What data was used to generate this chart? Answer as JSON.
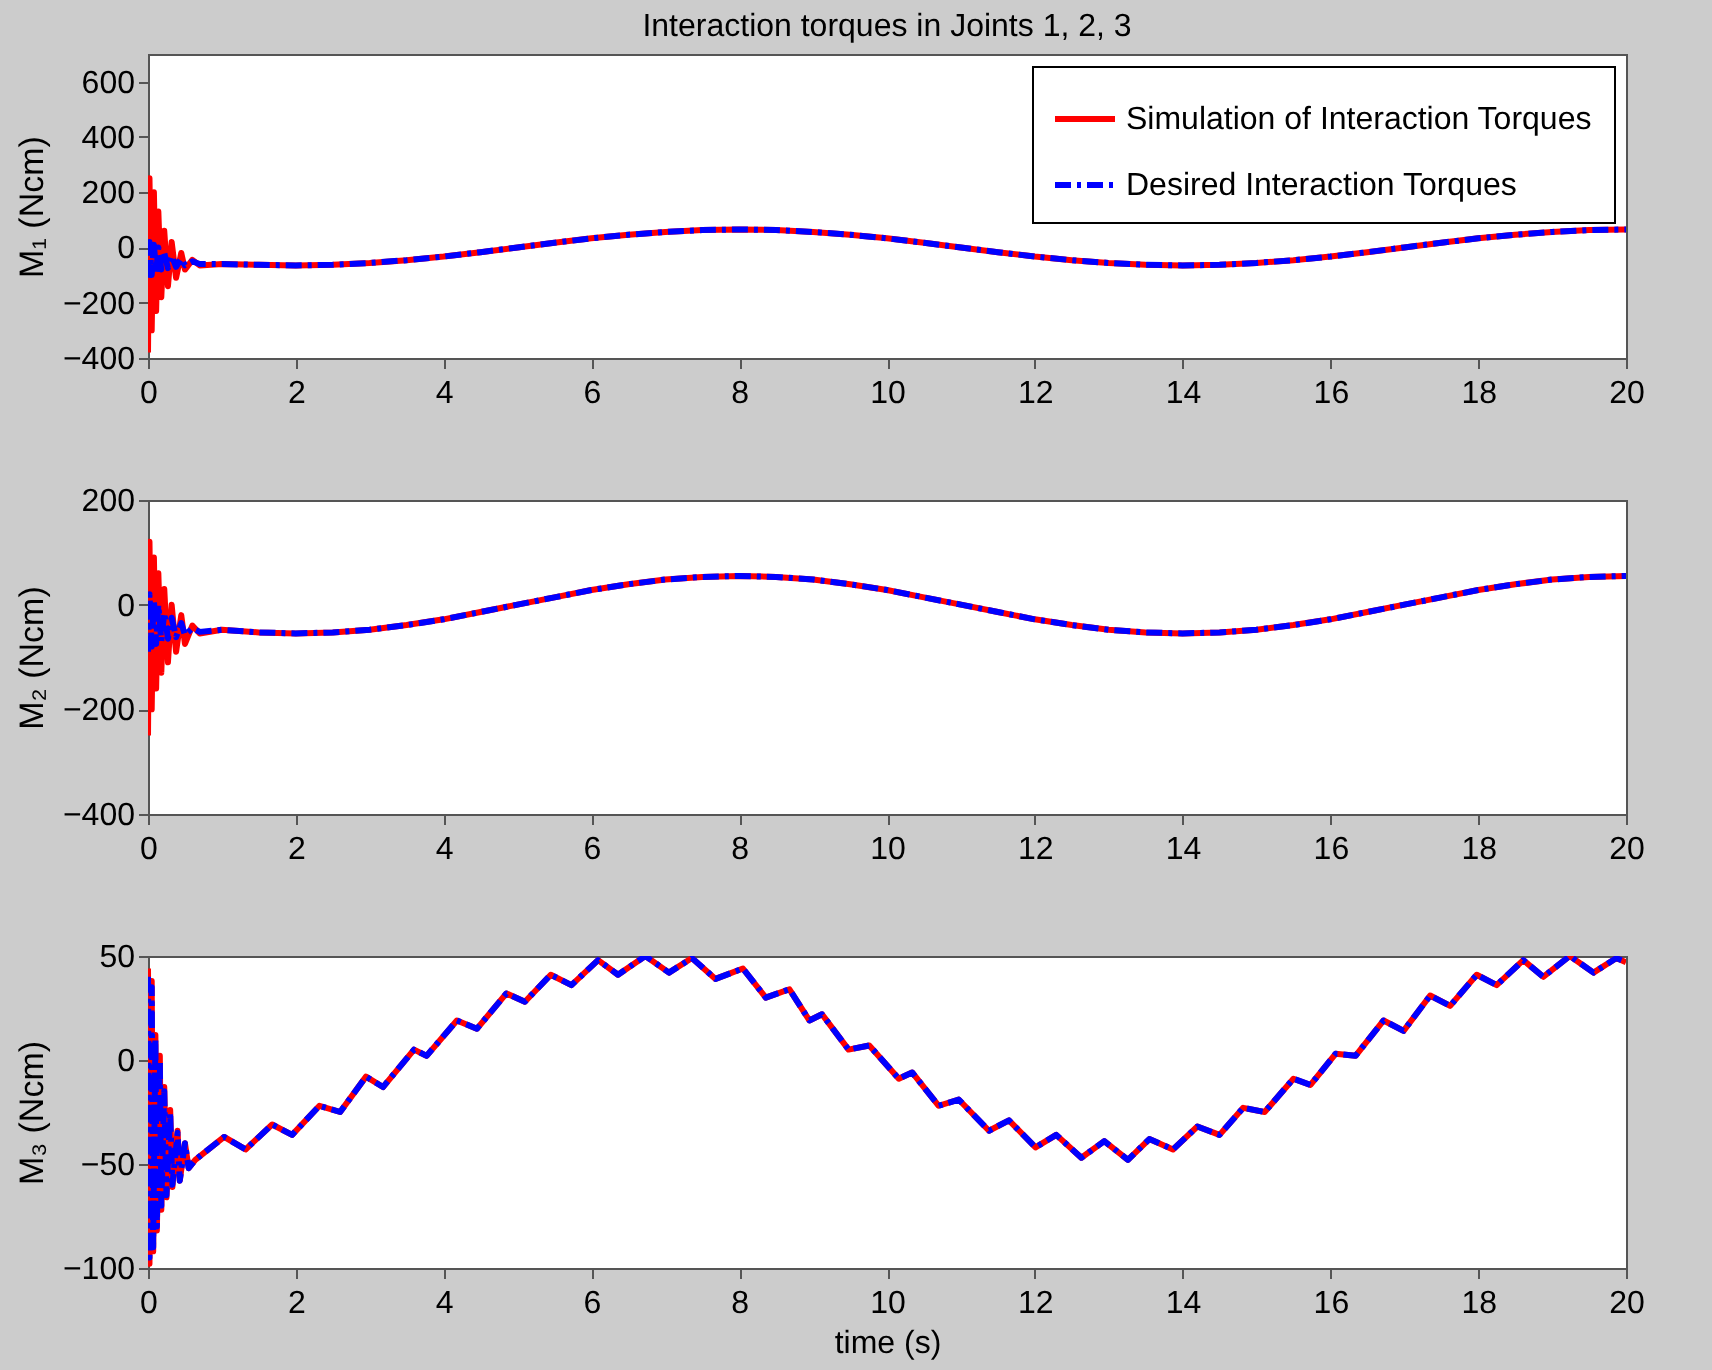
{
  "chart_data": [
    {
      "type": "line",
      "title": "Interaction torques in Joints 1, 2, 3",
      "ylabel": "M₁ (Ncm)",
      "xlim": [
        0,
        20
      ],
      "xticks": [
        0,
        2,
        4,
        6,
        8,
        10,
        12,
        14,
        16,
        18,
        20
      ],
      "ylim": [
        -400,
        700
      ],
      "yticks": [
        -400,
        -200,
        0,
        200,
        400,
        600
      ],
      "legend": "top right",
      "x": [
        0,
        0.02,
        0.05,
        0.08,
        0.11,
        0.14,
        0.18,
        0.22,
        0.27,
        0.32,
        0.38,
        0.45,
        0.5,
        0.6,
        0.7,
        1,
        1.5,
        2,
        2.5,
        3,
        3.5,
        4,
        4.5,
        5,
        5.5,
        6,
        6.5,
        7,
        7.5,
        8,
        8.5,
        9,
        9.5,
        10,
        10.5,
        11,
        11.5,
        12,
        12.5,
        13,
        13.5,
        14,
        14.5,
        15,
        15.5,
        16,
        16.5,
        17,
        17.5,
        18,
        18.5,
        19,
        19.5,
        20
      ],
      "series": [
        {
          "name": "Simulation of Interaction Torques",
          "color": "#ff0000",
          "line_style": "solid",
          "values": [
            -380,
            250,
            -300,
            200,
            -230,
            130,
            -180,
            60,
            -140,
            20,
            -110,
            -20,
            -80,
            -45,
            -65,
            -60,
            -63,
            -65,
            -63,
            -56,
            -46,
            -33,
            -17,
            0,
            17,
            33,
            46,
            56,
            63,
            65,
            63,
            56,
            46,
            33,
            17,
            0,
            -17,
            -33,
            -46,
            -56,
            -63,
            -65,
            -63,
            -56,
            -46,
            -33,
            -17,
            0,
            17,
            33,
            46,
            56,
            63,
            65
          ]
        },
        {
          "name": "Desired Interaction Torques",
          "color": "#0000ff",
          "line_style": "dashed",
          "values": [
            -110,
            20,
            -100,
            10,
            -90,
            0,
            -80,
            -20,
            -75,
            -30,
            -70,
            -40,
            -65,
            -50,
            -60,
            -60,
            -63,
            -65,
            -63,
            -56,
            -46,
            -33,
            -17,
            0,
            17,
            33,
            46,
            56,
            63,
            65,
            63,
            56,
            46,
            33,
            17,
            0,
            -17,
            -33,
            -46,
            -56,
            -63,
            -65,
            -63,
            -56,
            -46,
            -33,
            -17,
            0,
            17,
            33,
            46,
            56,
            63,
            65
          ]
        }
      ]
    },
    {
      "type": "line",
      "ylabel": "M₂ (Ncm)",
      "xlim": [
        0,
        20
      ],
      "xticks": [
        0,
        2,
        4,
        6,
        8,
        10,
        12,
        14,
        16,
        18,
        20
      ],
      "ylim": [
        -400,
        200
      ],
      "yticks": [
        -400,
        -200,
        0,
        200
      ],
      "x": [
        0,
        0.02,
        0.05,
        0.08,
        0.11,
        0.14,
        0.18,
        0.22,
        0.27,
        0.32,
        0.38,
        0.45,
        0.5,
        0.6,
        0.7,
        1,
        1.5,
        2,
        2.5,
        3,
        3.5,
        4,
        4.5,
        5,
        5.5,
        6,
        6.5,
        7,
        7.5,
        8,
        8.5,
        9,
        9.5,
        10,
        10.5,
        11,
        11.5,
        12,
        12.5,
        13,
        13.5,
        14,
        14.5,
        15,
        15.5,
        16,
        16.5,
        17,
        17.5,
        18,
        18.5,
        19,
        19.5,
        20
      ],
      "series": [
        {
          "color": "#ff0000",
          "line_style": "solid",
          "values": [
            -250,
            120,
            -200,
            90,
            -160,
            60,
            -130,
            30,
            -110,
            0,
            -90,
            -20,
            -75,
            -40,
            -55,
            -48,
            -53,
            -55,
            -53,
            -48,
            -39,
            -28,
            -14,
            0,
            14,
            28,
            39,
            48,
            53,
            55,
            53,
            48,
            39,
            28,
            14,
            0,
            -14,
            -28,
            -39,
            -48,
            -53,
            -55,
            -53,
            -48,
            -39,
            -28,
            -14,
            0,
            14,
            28,
            39,
            48,
            53,
            55
          ]
        },
        {
          "color": "#0000ff",
          "line_style": "dashed",
          "values": [
            -90,
            20,
            -80,
            10,
            -75,
            0,
            -70,
            -15,
            -65,
            -25,
            -62,
            -35,
            -58,
            -45,
            -52,
            -48,
            -53,
            -55,
            -53,
            -48,
            -39,
            -28,
            -14,
            0,
            14,
            28,
            39,
            48,
            53,
            55,
            53,
            48,
            39,
            28,
            14,
            0,
            -14,
            -28,
            -39,
            -48,
            -53,
            -55,
            -53,
            -48,
            -39,
            -28,
            -14,
            0,
            14,
            28,
            39,
            48,
            53,
            55
          ]
        }
      ]
    },
    {
      "type": "line",
      "ylabel": "M₃ (Ncm)",
      "xlabel": "time (s)",
      "xlim": [
        0,
        20
      ],
      "xticks": [
        0,
        2,
        4,
        6,
        8,
        10,
        12,
        14,
        16,
        18,
        20
      ],
      "ylim": [
        -100,
        50
      ],
      "yticks": [
        -100,
        -50,
        0,
        50
      ],
      "x": [
        0,
        0.02,
        0.05,
        0.07,
        0.1,
        0.12,
        0.16,
        0.18,
        0.22,
        0.25,
        0.3,
        0.33,
        0.4,
        0.43,
        0.5,
        0.55,
        0.64,
        1.03,
        1.32,
        1.68,
        1.95,
        2.32,
        2.6,
        2.95,
        3.18,
        3.6,
        3.77,
        4.18,
        4.45,
        4.85,
        5.1,
        5.45,
        5.73,
        6.09,
        6.36,
        6.73,
        7.05,
        7.36,
        7.68,
        8.05,
        8.36,
        8.68,
        8.95,
        9.12,
        9.48,
        9.76,
        10.16,
        10.34,
        10.7,
        10.97,
        11.38,
        11.65,
        12.01,
        12.29,
        12.63,
        12.94,
        13.26,
        13.55,
        13.87,
        14.2,
        14.5,
        14.82,
        15.11,
        15.5,
        15.73,
        16.07,
        16.34,
        16.72,
        16.99,
        17.35,
        17.62,
        17.98,
        18.25,
        18.61,
        18.88,
        19.24,
        19.56,
        19.87,
        20
      ],
      "series": [
        {
          "color": "#ff0000",
          "line_style": "solid",
          "values": [
            44,
            -98,
            38,
            -92,
            12,
            -82,
            2,
            -72,
            -13,
            -66,
            -24,
            -61,
            -34,
            -58,
            -40,
            -52,
            -48,
            -37,
            -43,
            -31,
            -36,
            -22,
            -25,
            -8,
            -13,
            5,
            2,
            19,
            15,
            32,
            28,
            41,
            36,
            48,
            41,
            50,
            42,
            49,
            39,
            44,
            30,
            34,
            19,
            22,
            5,
            7,
            -9,
            -6,
            -22,
            -19,
            -34,
            -29,
            -42,
            -36,
            -47,
            -39,
            -48,
            -38,
            -43,
            -32,
            -36,
            -23,
            -25,
            -9,
            -12,
            3,
            2,
            19,
            14,
            31,
            26,
            41,
            36,
            48,
            40,
            50,
            42,
            49,
            47
          ]
        },
        {
          "color": "#0000ff",
          "line_style": "dashed",
          "values": [
            40,
            -95,
            35,
            -90,
            10,
            -80,
            0,
            -70,
            -15,
            -65,
            -25,
            -60,
            -35,
            -58,
            -40,
            -52,
            -48,
            -37,
            -43,
            -31,
            -36,
            -22,
            -25,
            -8,
            -13,
            5,
            2,
            19,
            15,
            32,
            28,
            41,
            36,
            48,
            41,
            50,
            42,
            49,
            39,
            44,
            30,
            34,
            19,
            22,
            5,
            7,
            -9,
            -6,
            -22,
            -19,
            -34,
            -29,
            -42,
            -36,
            -47,
            -39,
            -48,
            -38,
            -43,
            -32,
            -36,
            -23,
            -25,
            -9,
            -12,
            3,
            2,
            19,
            14,
            31,
            26,
            41,
            36,
            48,
            40,
            50,
            42,
            49,
            47
          ]
        }
      ]
    }
  ]
}
